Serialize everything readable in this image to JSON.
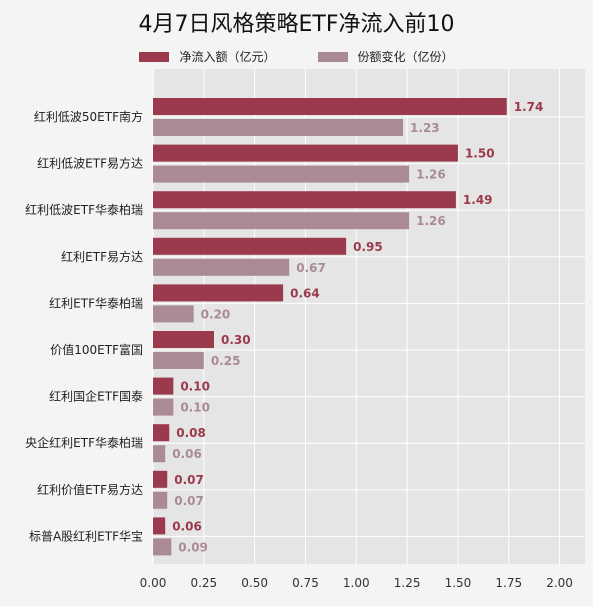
{
  "chart_data": {
    "type": "bar",
    "orientation": "horizontal",
    "title": "4月7日风格策略ETF净流入前10",
    "categories": [
      "红利低波50ETF南方",
      "红利低波ETF易方达",
      "红利低波ETF华泰柏瑞",
      "红利ETF易方达",
      "红利ETF华泰柏瑞",
      "价值100ETF富国",
      "红利国企ETF国泰",
      "央企红利ETF华泰柏瑞",
      "红利价值ETF易方达",
      "标普A股红利ETF华宝"
    ],
    "series": [
      {
        "name": "净流入额（亿元）",
        "color": "#9b3a4c",
        "values": [
          1.74,
          1.5,
          1.49,
          0.95,
          0.64,
          0.3,
          0.1,
          0.08,
          0.07,
          0.06
        ],
        "labels": [
          "1.74",
          "1.50",
          "1.49",
          "0.95",
          "0.64",
          "0.30",
          "0.10",
          "0.08",
          "0.07",
          "0.06"
        ]
      },
      {
        "name": "份额变化（亿份）",
        "color": "#ab8b93",
        "values": [
          1.23,
          1.26,
          1.26,
          0.67,
          0.2,
          0.25,
          0.1,
          0.06,
          0.07,
          0.09
        ],
        "labels": [
          "1.23",
          "1.26",
          "1.26",
          "0.67",
          "0.20",
          "0.25",
          "0.10",
          "0.06",
          "0.07",
          "0.09"
        ]
      }
    ],
    "xlim": [
      0,
      2.125
    ],
    "xticks": [
      "0.00",
      "0.25",
      "0.50",
      "0.75",
      "1.00",
      "1.25",
      "1.50",
      "1.75",
      "2.00"
    ],
    "xtick_values": [
      0,
      0.25,
      0.5,
      0.75,
      1.0,
      1.25,
      1.5,
      1.75,
      2.0
    ],
    "grid": true,
    "legend_position": "top-center",
    "background": "#e5e5e5"
  }
}
